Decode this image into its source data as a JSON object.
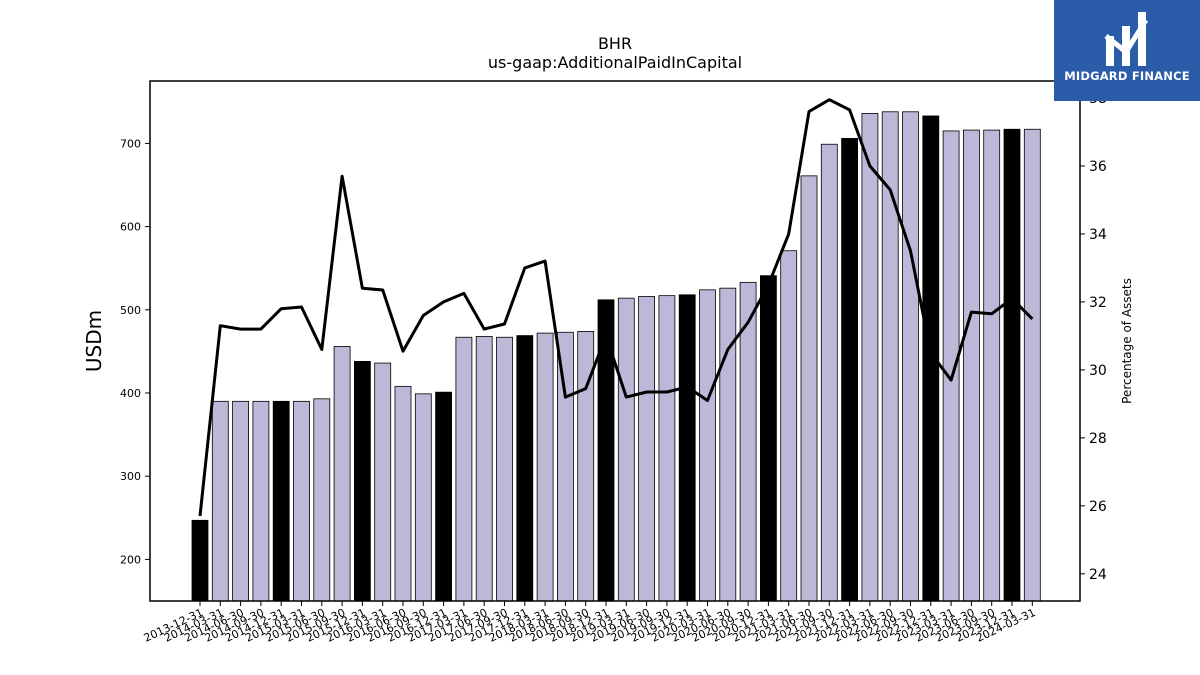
{
  "chart_data": {
    "type": "bar+line",
    "title": "BHR",
    "subtitle": "us-gaap:AdditionalPaidInCapital",
    "ylabel": "USDm",
    "y2label": "Percentage of Assets",
    "ylim": [
      150,
      775
    ],
    "y2lim": [
      23.2,
      38.5
    ],
    "yticks": [
      200,
      300,
      400,
      500,
      600,
      700
    ],
    "y2ticks": [
      24,
      26,
      28,
      30,
      32,
      34,
      36,
      38
    ],
    "colors": {
      "bar_default": "#bcb8d8",
      "bar_highlight": "#000000",
      "line": "#000000"
    },
    "categories": [
      "2013-12-31",
      "2014-03-31",
      "2014-06-30",
      "2014-09-30",
      "2014-12-31",
      "2015-03-31",
      "2015-06-30",
      "2015-09-30",
      "2015-12-31",
      "2016-03-31",
      "2016-06-30",
      "2016-09-30",
      "2016-12-31",
      "2017-03-31",
      "2017-06-30",
      "2017-09-30",
      "2017-12-31",
      "2018-03-31",
      "2018-06-30",
      "2018-09-30",
      "2018-12-31",
      "2019-03-31",
      "2019-06-30",
      "2019-09-30",
      "2019-12-31",
      "2020-03-31",
      "2020-06-30",
      "2020-09-30",
      "2020-12-31",
      "2021-03-31",
      "2021-06-30",
      "2021-09-30",
      "2021-12-31",
      "2022-03-31",
      "2022-06-30",
      "2022-09-30",
      "2022-12-31",
      "2023-03-31",
      "2023-06-30",
      "2023-09-30",
      "2023-12-31",
      "2024-03-31"
    ],
    "series": [
      {
        "kind": "bar",
        "values": [
          247,
          390,
          390,
          390,
          390,
          390,
          393,
          456,
          438,
          436,
          408,
          399,
          401,
          467,
          468,
          467,
          469,
          472,
          473,
          474,
          512,
          514,
          516,
          517,
          518,
          524,
          526,
          533,
          541,
          571,
          661,
          699,
          706,
          736,
          738,
          738,
          733,
          715,
          716,
          716,
          717,
          717
        ],
        "highlight": [
          true,
          false,
          false,
          false,
          true,
          false,
          false,
          false,
          true,
          false,
          false,
          false,
          true,
          false,
          false,
          false,
          true,
          false,
          false,
          false,
          true,
          false,
          false,
          false,
          true,
          false,
          false,
          false,
          true,
          false,
          false,
          false,
          true,
          false,
          false,
          false,
          true,
          false,
          false,
          false,
          true,
          false
        ]
      },
      {
        "kind": "line",
        "axis": "right",
        "values": [
          25.7,
          31.3,
          31.2,
          31.2,
          31.8,
          31.85,
          30.6,
          35.7,
          32.4,
          32.35,
          30.55,
          31.6,
          32.0,
          32.25,
          31.2,
          31.35,
          33.0,
          33.2,
          29.2,
          29.45,
          31.0,
          29.2,
          29.35,
          29.35,
          29.5,
          29.1,
          30.6,
          31.4,
          32.5,
          34.0,
          37.6,
          37.95,
          37.65,
          36.0,
          35.3,
          33.5,
          30.5,
          29.7,
          31.7,
          31.65,
          32.1,
          31.5
        ]
      }
    ]
  },
  "logo": {
    "text": "MIDGARD FINANCE",
    "color": "#2a5caa"
  }
}
